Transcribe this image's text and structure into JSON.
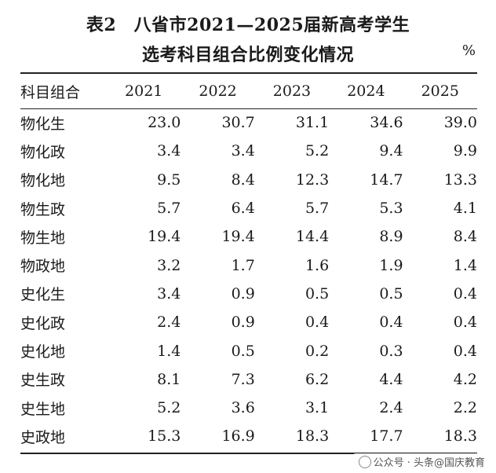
{
  "title": {
    "line1": "表2　八省市2021—2025届新高考学生",
    "line2": "选考科目组合比例变化情况",
    "unit": "%"
  },
  "table": {
    "header": [
      "科目组合",
      "2021",
      "2022",
      "2023",
      "2024",
      "2025"
    ],
    "rows": [
      {
        "name": "物化生",
        "values": [
          "23.0",
          "30.7",
          "31.1",
          "34.6",
          "39.0"
        ]
      },
      {
        "name": "物化政",
        "values": [
          "3.4",
          "3.4",
          "5.2",
          "9.4",
          "9.9"
        ]
      },
      {
        "name": "物化地",
        "values": [
          "9.5",
          "8.4",
          "12.3",
          "14.7",
          "13.3"
        ]
      },
      {
        "name": "物生政",
        "values": [
          "5.7",
          "6.4",
          "5.7",
          "5.3",
          "4.1"
        ]
      },
      {
        "name": "物生地",
        "values": [
          "19.4",
          "19.4",
          "14.4",
          "8.9",
          "8.4"
        ]
      },
      {
        "name": "物政地",
        "values": [
          "3.2",
          "1.7",
          "1.6",
          "1.9",
          "1.4"
        ]
      },
      {
        "name": "史化生",
        "values": [
          "3.4",
          "0.9",
          "0.5",
          "0.5",
          "0.4"
        ]
      },
      {
        "name": "史化政",
        "values": [
          "2.4",
          "0.9",
          "0.4",
          "0.4",
          "0.4"
        ]
      },
      {
        "name": "史化地",
        "values": [
          "1.4",
          "0.5",
          "0.2",
          "0.3",
          "0.4"
        ]
      },
      {
        "name": "史生政",
        "values": [
          "8.1",
          "7.3",
          "6.2",
          "4.4",
          "4.2"
        ]
      },
      {
        "name": "史生地",
        "values": [
          "5.2",
          "3.6",
          "3.1",
          "2.4",
          "2.2"
        ]
      },
      {
        "name": "史政地",
        "values": [
          "15.3",
          "16.9",
          "18.3",
          "17.7",
          "18.3"
        ]
      }
    ]
  },
  "watermark": {
    "text": "公众号 · 头条@国庆教育"
  }
}
